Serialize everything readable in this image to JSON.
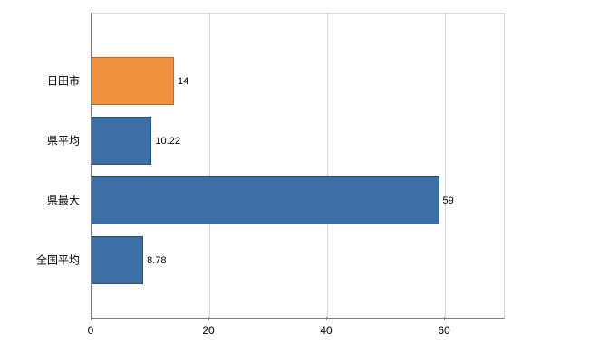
{
  "chart_data": {
    "type": "bar",
    "orientation": "horizontal",
    "title": "",
    "xlabel": "",
    "ylabel": "",
    "categories": [
      "日田市",
      "県平均",
      "県最大",
      "全国平均"
    ],
    "values": [
      14,
      10.22,
      59,
      8.78
    ],
    "value_labels": [
      "14",
      "10.22",
      "59",
      "8.78"
    ],
    "bar_fill_colors": [
      "#f0913c",
      "#3c6fa5",
      "#3c6fa5",
      "#3c6fa5"
    ],
    "bar_border_colors": [
      "#c06a1e",
      "#28517e",
      "#28517e",
      "#28517e"
    ],
    "xlim": [
      0,
      70
    ],
    "x_ticks": [
      0,
      20,
      40,
      60
    ],
    "x_tick_labels": [
      "0",
      "20",
      "40",
      "60"
    ],
    "grid": true,
    "gridline_color": "#d9d9d9",
    "axis_color": "#808080",
    "background_color": "#ffffff",
    "legend": false
  }
}
